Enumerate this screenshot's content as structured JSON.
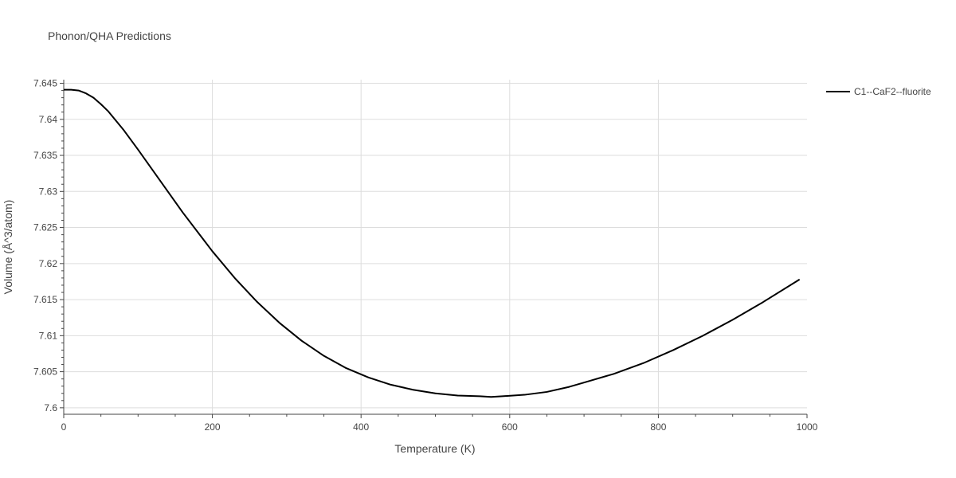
{
  "chart_data": {
    "type": "line",
    "title": "Phonon/QHA Predictions",
    "xlabel": "Temperature (K)",
    "ylabel": "Volume (Å^3/atom)",
    "xlim": [
      0,
      1000
    ],
    "ylim": [
      7.5991,
      7.6455
    ],
    "x_ticks": [
      0,
      200,
      400,
      600,
      800,
      1000
    ],
    "x_tick_labels": [
      "0",
      "200",
      "400",
      "600",
      "800",
      "1000"
    ],
    "y_ticks": [
      7.6,
      7.605,
      7.61,
      7.615,
      7.62,
      7.625,
      7.63,
      7.635,
      7.64,
      7.645
    ],
    "y_tick_labels": [
      "7.6",
      "7.605",
      "7.61",
      "7.615",
      "7.62",
      "7.625",
      "7.63",
      "7.635",
      "7.64",
      "7.645"
    ],
    "grid": true,
    "legend_position": "top-right",
    "series": [
      {
        "name": "C1--CaF2--fluorite",
        "color": "#000000",
        "x": [
          0,
          10,
          20,
          30,
          40,
          50,
          60,
          80,
          100,
          120,
          140,
          160,
          180,
          200,
          230,
          260,
          290,
          320,
          350,
          380,
          410,
          440,
          470,
          500,
          530,
          560,
          575,
          590,
          620,
          650,
          680,
          700,
          740,
          780,
          820,
          860,
          900,
          940,
          990
        ],
        "y": [
          7.6441,
          7.6441,
          7.644,
          7.6436,
          7.643,
          7.6421,
          7.6411,
          7.6386,
          7.6358,
          7.6329,
          7.63,
          7.6271,
          7.6244,
          7.6217,
          7.618,
          7.6147,
          7.6118,
          7.6093,
          7.6072,
          7.6055,
          7.6042,
          7.6032,
          7.6025,
          7.602,
          7.6017,
          7.6016,
          7.6015,
          7.6016,
          7.6018,
          7.6022,
          7.6029,
          7.6035,
          7.6047,
          7.6062,
          7.608,
          7.61,
          7.6122,
          7.6146,
          7.6178
        ]
      }
    ]
  }
}
